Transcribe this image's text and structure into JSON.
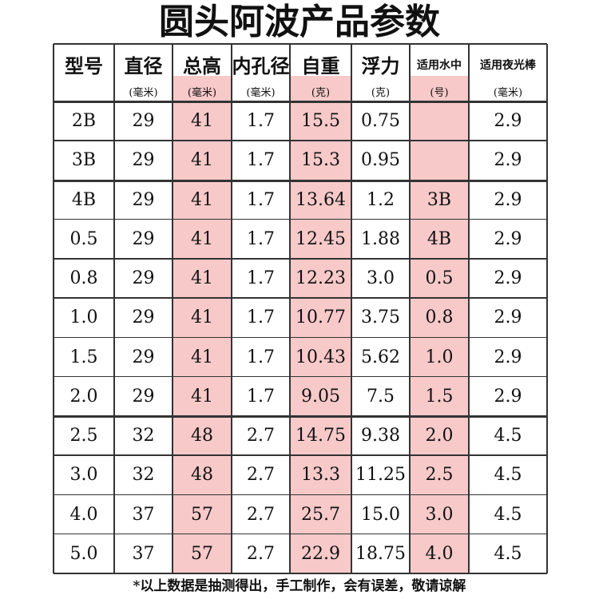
{
  "header": {
    "title": "圆头阿波产品参数"
  },
  "table": {
    "columns": [
      {
        "name": "型号"
      },
      {
        "name": "直径",
        "unit": "(毫米)"
      },
      {
        "name": "总高",
        "unit": "(毫米)",
        "color": "#f8c9c9"
      },
      {
        "name": "内孔径",
        "unit": "(毫米)"
      },
      {
        "name": "自重",
        "unit": "(克)",
        "color": "#f8c9c9"
      },
      {
        "name": "浮力",
        "unit": "(克)"
      },
      {
        "name": "适用水中",
        "unit": "(号)",
        "color": "#f8c9c9"
      },
      {
        "name": "适用夜光棒",
        "unit": "(毫米)"
      }
    ],
    "rows": [
      [
        "2B",
        "29",
        "41",
        "1.7",
        "15.5",
        "0.75",
        null,
        "2.9"
      ],
      [
        "3B",
        "29",
        "41",
        "1.7",
        "15.3",
        "0.95",
        null,
        "2.9"
      ],
      [
        "4B",
        "29",
        "41",
        "1.7",
        "13.64",
        "1.2",
        "3B",
        "2.9"
      ],
      [
        "0.5",
        "29",
        "41",
        "1.7",
        "12.45",
        "1.88",
        "4B",
        "2.9"
      ],
      [
        "0.8",
        "29",
        "41",
        "1.7",
        "12.23",
        "3.0",
        "0.5",
        "2.9"
      ],
      [
        "1.0",
        "29",
        "41",
        "1.7",
        "10.77",
        "3.75",
        "0.8",
        "2.9"
      ],
      [
        "1.5",
        "29",
        "41",
        "1.7",
        "10.43",
        "5.62",
        "1.0",
        "2.9"
      ],
      [
        "2.0",
        "29",
        "41",
        "1.7",
        "9.05",
        "7.5",
        "1.5",
        "2.9"
      ],
      [
        "2.5",
        "32",
        "48",
        "2.7",
        "14.75",
        "9.38",
        "2.0",
        "4.5"
      ],
      [
        "3.0",
        "32",
        "48",
        "2.7",
        "13.3",
        "11.25",
        "2.5",
        "4.5"
      ],
      [
        "4.0",
        "37",
        "57",
        "2.7",
        "25.7",
        "15.0",
        "3.0",
        "4.5"
      ],
      [
        "5.0",
        "37",
        "57",
        "2.7",
        "22.9",
        "18.75",
        "4.0",
        "4.5"
      ]
    ]
  },
  "footer": {
    "note": "*以上数据是抽测得出，手工制作，会有误差，敬请谅解"
  }
}
